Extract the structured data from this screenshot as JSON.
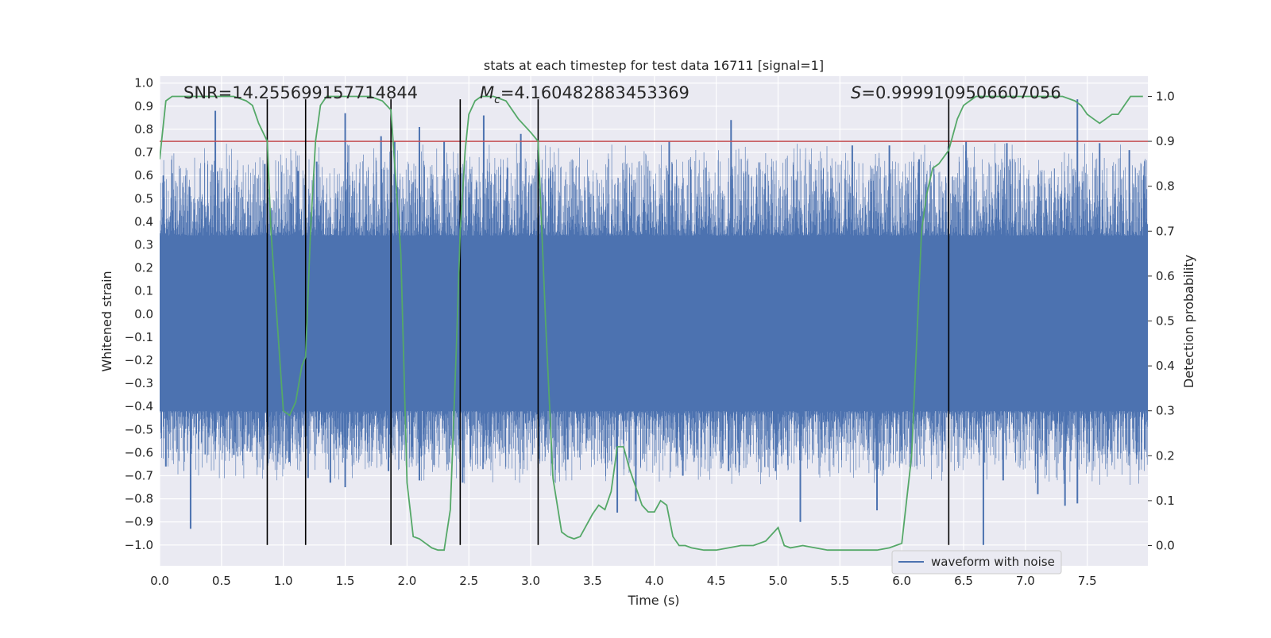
{
  "chart_data": {
    "type": "line",
    "title": "stats at each timestep for test data 16711 [signal=1]",
    "xlabel": "Time (s)",
    "ylabel": "Whitened strain",
    "y2label": "Detection probability",
    "xlim": [
      0.0,
      7.99
    ],
    "ylim": [
      -1.09,
      1.03
    ],
    "y2lim": [
      -0.045,
      1.045
    ],
    "x_ticks": [
      0.0,
      0.5,
      1.0,
      1.5,
      2.0,
      2.5,
      3.0,
      3.5,
      4.0,
      4.5,
      5.0,
      5.5,
      6.0,
      6.5,
      7.0,
      7.5
    ],
    "x_tick_labels": [
      "0.0",
      "0.5",
      "1.0",
      "1.5",
      "2.0",
      "2.5",
      "3.0",
      "3.5",
      "4.0",
      "4.5",
      "5.0",
      "5.5",
      "6.0",
      "6.5",
      "7.0",
      "7.5"
    ],
    "y_ticks": [
      1.0,
      0.9,
      0.8,
      0.7,
      0.6,
      0.5,
      0.4,
      0.3,
      0.2,
      0.1,
      0.0,
      -0.1,
      -0.2,
      -0.3,
      -0.4,
      -0.5,
      -0.6,
      -0.7,
      -0.8,
      -0.9,
      -1.0
    ],
    "y_tick_labels": [
      "1.0",
      "0.9",
      "0.8",
      "0.7",
      "0.6",
      "0.5",
      "0.4",
      "0.3",
      "0.2",
      "0.1",
      "0.0",
      "−0.1",
      "−0.2",
      "−0.3",
      "−0.4",
      "−0.5",
      "−0.6",
      "−0.7",
      "−0.8",
      "−0.9",
      "−1.0"
    ],
    "y2_ticks": [
      1.0,
      0.9,
      0.8,
      0.7,
      0.6,
      0.5,
      0.4,
      0.3,
      0.2,
      0.1,
      0.0
    ],
    "y2_tick_labels": [
      "1.0",
      "0.9",
      "0.8",
      "0.7",
      "0.6",
      "0.5",
      "0.4",
      "0.3",
      "0.2",
      "0.1",
      "0.0"
    ],
    "annotations": {
      "snr": "SNR=14.255699157714844",
      "mc_symbol": "M",
      "mc_sub": "c",
      "mc_value": "=4.160482883453369",
      "s_symbol": "S",
      "s_value": "=0.9999109506607056"
    },
    "legend": {
      "label": "waveform with noise",
      "position": "lower-right"
    },
    "threshold": {
      "y2": 0.9,
      "color": "#c44e52"
    },
    "vlines": {
      "x": [
        0.87,
        1.18,
        1.87,
        2.43,
        3.06,
        6.38
      ],
      "ymin": -1.0,
      "ymax": 0.93,
      "color": "#000000"
    },
    "waveform": {
      "name": "waveform with noise",
      "color": "#4c72b0",
      "x_range": [
        0.0,
        8.0
      ],
      "dense_band": [
        -0.42,
        0.34
      ],
      "peak_max": 0.93,
      "trough_min": -1.0,
      "spikes_up": [
        [
          0.03,
          0.6
        ],
        [
          0.1,
          0.61
        ],
        [
          0.24,
          0.55
        ],
        [
          0.45,
          0.88
        ],
        [
          0.85,
          0.65
        ],
        [
          1.12,
          0.62
        ],
        [
          1.27,
          0.66
        ],
        [
          1.5,
          0.87
        ],
        [
          1.79,
          0.77
        ],
        [
          1.9,
          0.75
        ],
        [
          2.1,
          0.81
        ],
        [
          2.3,
          0.75
        ],
        [
          2.62,
          0.86
        ],
        [
          2.92,
          0.78
        ],
        [
          3.06,
          0.71
        ],
        [
          4.12,
          0.75
        ],
        [
          4.62,
          0.84
        ],
        [
          5.6,
          0.73
        ],
        [
          5.9,
          0.73
        ],
        [
          6.14,
          0.67
        ],
        [
          6.52,
          0.75
        ],
        [
          6.85,
          0.74
        ],
        [
          7.42,
          0.93
        ],
        [
          7.6,
          0.74
        ],
        [
          7.84,
          0.71
        ]
      ],
      "spikes_down": [
        [
          0.05,
          -0.66
        ],
        [
          0.25,
          -0.93
        ],
        [
          0.6,
          -0.61
        ],
        [
          1.05,
          -0.64
        ],
        [
          1.2,
          -0.71
        ],
        [
          1.38,
          -0.73
        ],
        [
          1.5,
          -0.75
        ],
        [
          1.85,
          -0.68
        ],
        [
          2.1,
          -0.72
        ],
        [
          2.45,
          -0.73
        ],
        [
          3.3,
          -0.63
        ],
        [
          3.7,
          -0.86
        ],
        [
          3.85,
          -0.81
        ],
        [
          4.23,
          -0.7
        ],
        [
          4.6,
          -0.68
        ],
        [
          4.98,
          -0.68
        ],
        [
          5.18,
          -0.9
        ],
        [
          5.8,
          -0.85
        ],
        [
          6.66,
          -1.0
        ],
        [
          6.82,
          -0.72
        ],
        [
          7.1,
          -0.78
        ],
        [
          7.32,
          -0.83
        ],
        [
          7.42,
          -0.82
        ],
        [
          7.9,
          -0.61
        ]
      ]
    },
    "probability": {
      "name": "Detection probability",
      "color": "#55a868",
      "x": [
        0.0,
        0.05,
        0.1,
        0.2,
        0.3,
        0.4,
        0.5,
        0.6,
        0.7,
        0.75,
        0.8,
        0.87,
        0.9,
        0.95,
        1.0,
        1.05,
        1.1,
        1.15,
        1.18,
        1.22,
        1.26,
        1.3,
        1.35,
        1.4,
        1.5,
        1.6,
        1.7,
        1.8,
        1.87,
        1.9,
        1.95,
        2.0,
        2.05,
        2.1,
        2.15,
        2.2,
        2.25,
        2.3,
        2.35,
        2.4,
        2.43,
        2.47,
        2.5,
        2.55,
        2.6,
        2.7,
        2.8,
        2.9,
        3.0,
        3.06,
        3.12,
        3.18,
        3.25,
        3.3,
        3.35,
        3.4,
        3.5,
        3.55,
        3.6,
        3.65,
        3.7,
        3.75,
        3.8,
        3.85,
        3.9,
        3.95,
        4.0,
        4.05,
        4.1,
        4.15,
        4.2,
        4.25,
        4.3,
        4.4,
        4.5,
        4.6,
        4.7,
        4.8,
        4.9,
        5.0,
        5.05,
        5.1,
        5.2,
        5.3,
        5.4,
        5.5,
        5.6,
        5.7,
        5.8,
        5.9,
        6.0,
        6.08,
        6.12,
        6.16,
        6.2,
        6.25,
        6.3,
        6.38,
        6.45,
        6.5,
        6.6,
        6.7,
        6.8,
        7.0,
        7.1,
        7.2,
        7.3,
        7.4,
        7.45,
        7.5,
        7.55,
        7.6,
        7.65,
        7.7,
        7.75,
        7.8,
        7.85,
        7.9,
        7.95
      ],
      "y": [
        0.86,
        0.99,
        1.0,
        1.0,
        1.0,
        1.0,
        1.0,
        1.0,
        0.99,
        0.98,
        0.94,
        0.9,
        0.7,
        0.5,
        0.3,
        0.29,
        0.32,
        0.4,
        0.42,
        0.7,
        0.9,
        0.98,
        1.0,
        1.0,
        1.0,
        1.0,
        1.0,
        0.99,
        0.97,
        0.85,
        0.65,
        0.14,
        0.02,
        0.015,
        0.005,
        -0.005,
        -0.01,
        -0.01,
        0.08,
        0.45,
        0.7,
        0.88,
        0.96,
        0.99,
        1.0,
        1.0,
        0.99,
        0.95,
        0.92,
        0.9,
        0.5,
        0.15,
        0.03,
        0.02,
        0.015,
        0.02,
        0.07,
        0.09,
        0.08,
        0.12,
        0.22,
        0.22,
        0.17,
        0.13,
        0.09,
        0.075,
        0.075,
        0.1,
        0.09,
        0.02,
        0.0,
        0.0,
        -0.005,
        -0.01,
        -0.01,
        -0.005,
        0.0,
        0.0,
        0.01,
        0.04,
        0.0,
        -0.005,
        0.0,
        -0.005,
        -0.01,
        -0.01,
        -0.01,
        -0.01,
        -0.01,
        -0.005,
        0.005,
        0.2,
        0.45,
        0.7,
        0.78,
        0.84,
        0.85,
        0.88,
        0.95,
        0.98,
        1.0,
        1.0,
        1.0,
        1.0,
        1.0,
        1.0,
        1.0,
        0.99,
        0.98,
        0.96,
        0.95,
        0.94,
        0.95,
        0.96,
        0.96,
        0.98,
        1.0,
        1.0,
        1.0
      ]
    }
  }
}
